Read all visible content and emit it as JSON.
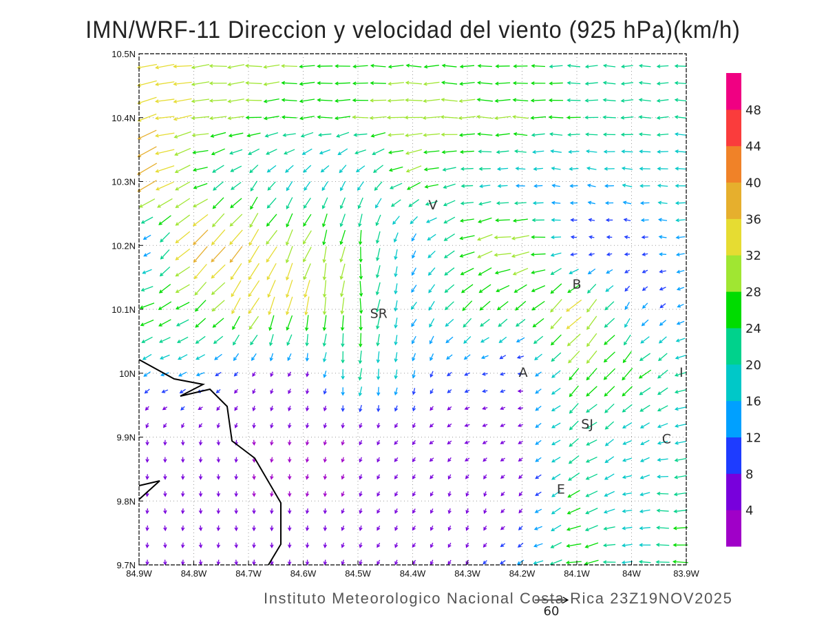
{
  "title": "IMN/WRF-11 Direccion y velocidad del viento (925 hPa)(km/h)",
  "footer": "Instituto Meteorologico Nacional Costa Rica 23Z19NOV2025",
  "reference_vector": {
    "value": 60,
    "label": "60"
  },
  "axes": {
    "lon_range": [
      -84.9,
      -83.9
    ],
    "lat_range": [
      9.7,
      10.5
    ],
    "x_ticks": [
      {
        "v": -84.9,
        "label": "84.9W"
      },
      {
        "v": -84.8,
        "label": "84.8W"
      },
      {
        "v": -84.7,
        "label": "84.7W"
      },
      {
        "v": -84.6,
        "label": "84.6W"
      },
      {
        "v": -84.5,
        "label": "84.5W"
      },
      {
        "v": -84.4,
        "label": "84.4W"
      },
      {
        "v": -84.3,
        "label": "84.3W"
      },
      {
        "v": -84.2,
        "label": "84.2W"
      },
      {
        "v": -84.1,
        "label": "84.1W"
      },
      {
        "v": -84.0,
        "label": "84W"
      },
      {
        "v": -83.9,
        "label": "83.9W"
      }
    ],
    "y_ticks": [
      {
        "v": 10.5,
        "label": "10.5N"
      },
      {
        "v": 10.4,
        "label": "10.4N"
      },
      {
        "v": 10.3,
        "label": "10.3N"
      },
      {
        "v": 10.2,
        "label": "10.2N"
      },
      {
        "v": 10.1,
        "label": "10.1N"
      },
      {
        "v": 10.0,
        "label": "10N"
      },
      {
        "v": 9.9,
        "label": "9.9N"
      },
      {
        "v": 9.8,
        "label": "9.8N"
      },
      {
        "v": 9.7,
        "label": "9.7N"
      }
    ]
  },
  "colorbar": {
    "labels": [
      "4",
      "8",
      "12",
      "16",
      "20",
      "24",
      "28",
      "32",
      "36",
      "40",
      "44",
      "48"
    ],
    "bins": [
      0,
      4,
      8,
      12,
      16,
      20,
      24,
      28,
      32,
      36,
      40,
      44,
      48,
      52
    ],
    "colors": [
      "#a000c8",
      "#7800dc",
      "#1e3cff",
      "#00a0ff",
      "#00c8c8",
      "#00d28c",
      "#00dc00",
      "#a0e632",
      "#e6dc32",
      "#e6af2d",
      "#f08228",
      "#fa3c3c",
      "#f00082"
    ]
  },
  "stations": [
    {
      "label": "V",
      "lon": -84.363,
      "lat": 10.264
    },
    {
      "label": "B",
      "lon": -84.1,
      "lat": 10.14
    },
    {
      "label": "SR",
      "lon": -84.462,
      "lat": 10.094
    },
    {
      "label": "A",
      "lon": -84.198,
      "lat": 10.002
    },
    {
      "label": "I",
      "lon": -83.909,
      "lat": 10.002
    },
    {
      "label": "SJ",
      "lon": -84.081,
      "lat": 9.921
    },
    {
      "label": "C",
      "lon": -83.936,
      "lat": 9.898
    },
    {
      "label": "E",
      "lon": -84.129,
      "lat": 9.819
    }
  ],
  "wind_field": {
    "note_units": "direction toward (deg, 0=east, 90=north), speed km/h",
    "lats": [
      10.5,
      10.4,
      10.3,
      10.2,
      10.1,
      10.0,
      9.9,
      9.8,
      9.7
    ],
    "lons": [
      -84.9,
      -84.8,
      -84.7,
      -84.6,
      -84.5,
      -84.4,
      -84.3,
      -84.2,
      -84.1,
      -84.0,
      -83.9
    ],
    "direction": [
      [
        190,
        185,
        183,
        182,
        180,
        180,
        180,
        180,
        180,
        180,
        180
      ],
      [
        195,
        188,
        185,
        183,
        182,
        182,
        180,
        180,
        180,
        180,
        180
      ],
      [
        210,
        200,
        230,
        235,
        240,
        200,
        185,
        180,
        175,
        175,
        180
      ],
      [
        215,
        225,
        235,
        245,
        265,
        250,
        200,
        185,
        170,
        175,
        180
      ],
      [
        200,
        215,
        240,
        260,
        270,
        240,
        225,
        220,
        225,
        240,
        200
      ],
      [
        210,
        200,
        240,
        250,
        265,
        260,
        200,
        180,
        230,
        225,
        200
      ],
      [
        270,
        270,
        270,
        260,
        250,
        230,
        200,
        210,
        215,
        210,
        190
      ],
      [
        270,
        270,
        270,
        265,
        250,
        240,
        260,
        230,
        210,
        190,
        180
      ],
      [
        270,
        270,
        270,
        270,
        250,
        240,
        240,
        210,
        190,
        180,
        175
      ]
    ],
    "speed": [
      [
        36,
        32,
        30,
        28,
        26,
        26,
        24,
        24,
        22,
        20,
        20
      ],
      [
        36,
        32,
        28,
        26,
        28,
        32,
        30,
        28,
        24,
        22,
        20
      ],
      [
        44,
        26,
        20,
        18,
        18,
        28,
        20,
        14,
        14,
        18,
        18
      ],
      [
        6,
        40,
        36,
        30,
        28,
        14,
        28,
        34,
        8,
        8,
        16
      ],
      [
        28,
        26,
        34,
        34,
        28,
        16,
        24,
        24,
        36,
        14,
        12
      ],
      [
        14,
        16,
        8,
        6,
        22,
        14,
        10,
        8,
        28,
        28,
        20
      ],
      [
        4,
        4,
        4,
        4,
        4,
        6,
        5,
        8,
        22,
        16,
        20
      ],
      [
        4,
        4,
        4,
        4,
        4,
        4,
        5,
        6,
        26,
        16,
        24
      ],
      [
        5,
        5,
        5,
        5,
        5,
        6,
        6,
        14,
        28,
        18,
        28
      ]
    ]
  }
}
